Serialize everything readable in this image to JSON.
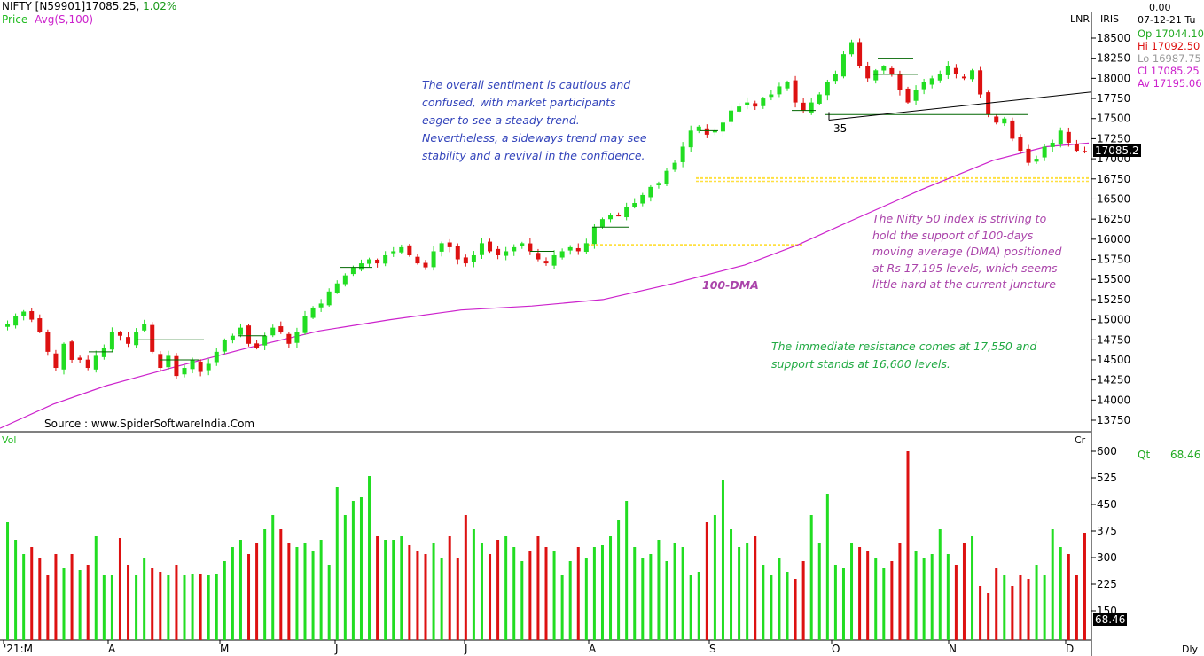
{
  "header": {
    "symbol": "NIFTY [N59901]",
    "price": "17085.25,",
    "change": "1.02%",
    "indicator_label": "Price",
    "indicator": "Avg(S,100)",
    "scale_mode": "LNR",
    "brand": "IRIS",
    "top_value": "0.00",
    "date": "07-12-21  Tu"
  },
  "quote": {
    "open": "Op 17044.10",
    "high": "Hi  17092.50",
    "low": "Lo  16987.75",
    "close": "Cl  17085.25",
    "avg": "Av 17195.06"
  },
  "price_tag": "17085.2",
  "volume_tag": "68.46",
  "volume_panel": {
    "label": "Vol",
    "unit": "Cr",
    "qt_label": "Qt",
    "qt_value": "68.46"
  },
  "source": "Source : www.SpiderSoftwareIndia.Com",
  "period": "Dly",
  "annotations": {
    "sentiment": "The overall sentiment is cautious and\nconfused, with market participants\neager to see a steady trend.\nNevertheless, a sideways trend may see\nstability and a revival in the confidence.",
    "dma_note": "The Nifty 50 index is striving to\nhold the support of 100-days\nmoving average (DMA) positioned\nat Rs 17,195 levels, which seems\nlittle hard at the current juncture",
    "levels": "The immediate resistance comes at 17,550 and\nsupport stands at 16,600 levels.",
    "dma_label": "100-DMA",
    "trend_count": "35"
  },
  "colors": {
    "up": "#22dd22",
    "down": "#dd1111",
    "dma": "#cc22cc",
    "support": "#ffe040",
    "blue_note": "#3344bb",
    "purple_note": "#aa44aa",
    "green_note": "#22aa44",
    "header_green": "#1a9a1a"
  },
  "chart_data": [
    {
      "type": "candlestick",
      "title": "NIFTY [N59901]",
      "x_tick_labels": [
        "'21:M",
        "A",
        "M",
        "J",
        "J",
        "A",
        "S",
        "O",
        "N",
        "D"
      ],
      "y_ticks": [
        13750,
        14000,
        14250,
        14500,
        14750,
        15000,
        15250,
        15500,
        15750,
        16000,
        16250,
        16500,
        16750,
        17000,
        17250,
        17500,
        17750,
        18000,
        18250,
        18500
      ],
      "ylim": [
        13550,
        18650
      ],
      "closes": [
        14950,
        15050,
        15100,
        15000,
        14850,
        14600,
        14400,
        14700,
        14500,
        14500,
        14400,
        14550,
        14650,
        14850,
        14800,
        14700,
        14850,
        14950,
        14600,
        14400,
        14550,
        14300,
        14400,
        14500,
        14350,
        14450,
        14600,
        14750,
        14800,
        14900,
        14700,
        14650,
        14800,
        14900,
        14850,
        14700,
        14850,
        15050,
        15150,
        15200,
        15350,
        15450,
        15550,
        15650,
        15700,
        15750,
        15700,
        15800,
        15850,
        15900,
        15800,
        15700,
        15650,
        15850,
        15950,
        15900,
        15750,
        15700,
        15800,
        15950,
        15850,
        15800,
        15850,
        15900,
        15950,
        15850,
        15750,
        15700,
        15800,
        15850,
        15900,
        15850,
        15950,
        16150,
        16250,
        16300,
        16300,
        16400,
        16450,
        16550,
        16650,
        16700,
        16850,
        16950,
        17150,
        17350,
        17400,
        17300,
        17350,
        17450,
        17600,
        17650,
        17700,
        17650,
        17750,
        17800,
        17900,
        17950,
        17700,
        17600,
        17700,
        17800,
        17950,
        18050,
        18300,
        18450,
        18150,
        18000,
        18100,
        18150,
        18050,
        17850,
        17700,
        17850,
        17950,
        18000,
        18050,
        18150,
        18050,
        18000,
        18100,
        17800,
        17550,
        17450,
        17500,
        17250,
        17100,
        16950,
        17000,
        17150,
        17200,
        17350,
        17200,
        17100,
        17085
      ],
      "dma_100": {
        "start": 13650,
        "end": 17195
      },
      "series": [
        {
          "name": "Avg(S,100)",
          "values_note": "100-day simple moving average"
        }
      ]
    },
    {
      "type": "bar",
      "title": "Vol",
      "unit": "Cr",
      "y_ticks": [
        150,
        225,
        300,
        375,
        450,
        525,
        600
      ],
      "ylim": [
        75,
        625
      ],
      "values": [
        400,
        350,
        310,
        330,
        300,
        250,
        310,
        270,
        310,
        265,
        280,
        360,
        250,
        250,
        355,
        280,
        250,
        300,
        270,
        260,
        250,
        280,
        250,
        255,
        255,
        250,
        255,
        290,
        330,
        350,
        310,
        340,
        380,
        420,
        380,
        340,
        330,
        340,
        320,
        350,
        280,
        500,
        420,
        460,
        470,
        530,
        360,
        350,
        350,
        360,
        335,
        320,
        310,
        340,
        300,
        360,
        300,
        420,
        380,
        340,
        310,
        350,
        360,
        330,
        290,
        320,
        360,
        330,
        320,
        250,
        290,
        330,
        300,
        330,
        335,
        360,
        405,
        460,
        330,
        300,
        310,
        350,
        290,
        340,
        330,
        250,
        260,
        400,
        420,
        520,
        380,
        330,
        340,
        360,
        280,
        250,
        300,
        260,
        240,
        290,
        420,
        340,
        480,
        280,
        270,
        340,
        330,
        320,
        300,
        270,
        290,
        340,
        600,
        320,
        300,
        310,
        380,
        310,
        280,
        340,
        360,
        220,
        200,
        270,
        250,
        220,
        250,
        240,
        280,
        250,
        380,
        330,
        310,
        250,
        370
      ]
    }
  ]
}
